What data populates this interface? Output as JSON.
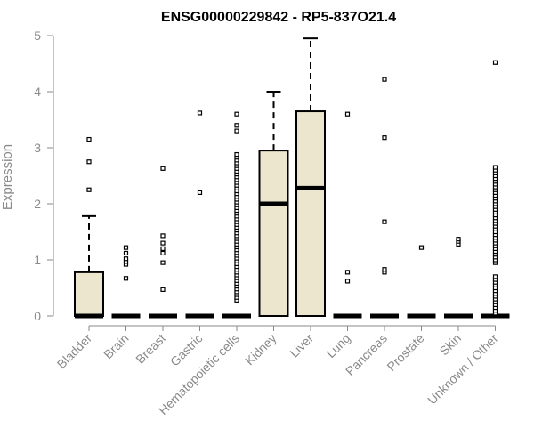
{
  "chart_data": {
    "type": "box",
    "title": "ENSG00000229842 - RP5-837O21.4",
    "ylabel": "Expression",
    "xlabel": "",
    "ylim": [
      0,
      5
    ],
    "yticks": [
      0,
      1,
      2,
      3,
      4,
      5
    ],
    "box_fill": "#ede6cf",
    "categories": [
      "Bladder",
      "Brain",
      "Breast",
      "Gastric",
      "Hematopoietic cells",
      "Kidney",
      "Liver",
      "Lung",
      "Pancreas",
      "Prostate",
      "Skin",
      "Unknown / Other"
    ],
    "boxes": [
      {
        "min": 0,
        "q1": 0,
        "median": 0,
        "q3": 0.78,
        "max": 1.78,
        "outliers": [
          2.25,
          2.75,
          3.15
        ]
      },
      {
        "min": 0,
        "q1": 0,
        "median": 0,
        "q3": 0,
        "max": 0,
        "outliers": [
          0.67,
          0.92,
          0.97,
          1.02,
          1.12,
          1.22
        ]
      },
      {
        "min": 0,
        "q1": 0,
        "median": 0,
        "q3": 0,
        "max": 0,
        "outliers": [
          0.47,
          0.95,
          1.12,
          1.2,
          1.3,
          1.43,
          2.63
        ]
      },
      {
        "min": 0,
        "q1": 0,
        "median": 0,
        "q3": 0,
        "max": 0,
        "outliers": [
          2.2,
          3.62
        ]
      },
      {
        "min": 0,
        "q1": 0,
        "median": 0,
        "q3": 0,
        "max": 0,
        "outliers": [
          0.28,
          0.33,
          0.38,
          0.43,
          0.48,
          0.53,
          0.58,
          0.63,
          0.68,
          0.73,
          0.78,
          0.83,
          0.88,
          0.93,
          0.98,
          1.03,
          1.08,
          1.13,
          1.18,
          1.23,
          1.28,
          1.33,
          1.38,
          1.43,
          1.48,
          1.53,
          1.58,
          1.63,
          1.68,
          1.73,
          1.78,
          1.83,
          1.88,
          1.93,
          1.98,
          2.03,
          2.08,
          2.13,
          2.18,
          2.23,
          2.28,
          2.33,
          2.38,
          2.43,
          2.48,
          2.53,
          2.58,
          2.63,
          2.68,
          2.73,
          2.78,
          2.83,
          2.88,
          3.3,
          3.4,
          3.6
        ]
      },
      {
        "min": 0,
        "q1": 0,
        "median": 2.0,
        "q3": 2.95,
        "max": 4.0,
        "outliers": []
      },
      {
        "min": 0,
        "q1": 0,
        "median": 2.28,
        "q3": 3.65,
        "max": 4.95,
        "outliers": []
      },
      {
        "min": 0,
        "q1": 0,
        "median": 0,
        "q3": 0,
        "max": 0,
        "outliers": [
          0.62,
          0.78,
          3.6
        ]
      },
      {
        "min": 0,
        "q1": 0,
        "median": 0,
        "q3": 0,
        "max": 0,
        "outliers": [
          0.78,
          0.83,
          1.68,
          3.18,
          4.22
        ]
      },
      {
        "min": 0,
        "q1": 0,
        "median": 0,
        "q3": 0,
        "max": 0,
        "outliers": [
          1.22
        ]
      },
      {
        "min": 0,
        "q1": 0,
        "median": 0,
        "q3": 0,
        "max": 0,
        "outliers": [
          1.28,
          1.33,
          1.37
        ]
      },
      {
        "min": 0,
        "q1": 0,
        "median": 0,
        "q3": 0,
        "max": 0,
        "outliers": [
          0.05,
          0.1,
          0.15,
          0.2,
          0.25,
          0.3,
          0.35,
          0.4,
          0.45,
          0.5,
          0.55,
          0.6,
          0.65,
          0.7,
          0.95,
          1.0,
          1.05,
          1.1,
          1.15,
          1.2,
          1.25,
          1.3,
          1.35,
          1.4,
          1.45,
          1.5,
          1.55,
          1.6,
          1.65,
          1.7,
          1.75,
          1.8,
          1.85,
          1.9,
          1.95,
          2.0,
          2.05,
          2.1,
          2.15,
          2.2,
          2.25,
          2.3,
          2.35,
          2.4,
          2.45,
          2.5,
          2.55,
          2.6,
          2.65,
          4.52
        ]
      }
    ]
  }
}
